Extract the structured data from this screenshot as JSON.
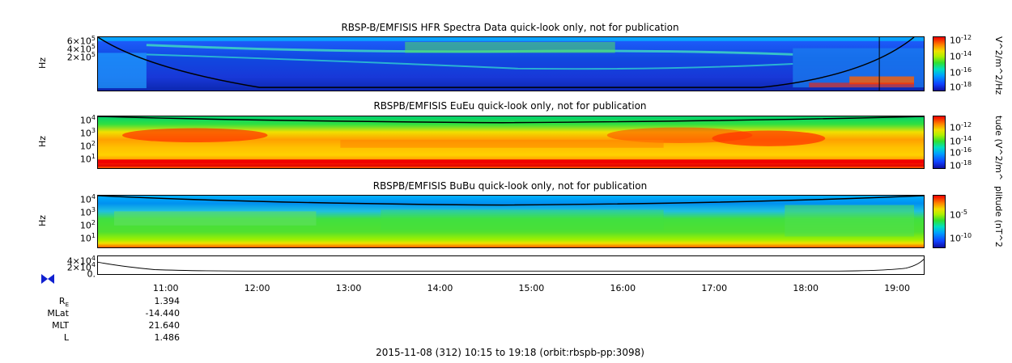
{
  "panels": [
    {
      "title": "RBSP-B/EMFISIS  HFR Spectra Data quick-look only, not for publication",
      "ylabel": "Hz",
      "yticks": [
        {
          "label": "6×10",
          "sup": "5"
        },
        {
          "label": "4×10",
          "sup": "5"
        },
        {
          "label": "2×10",
          "sup": "5"
        }
      ],
      "colorbar_title": "V^2/m^2/Hz",
      "colorbar_ticks": [
        {
          "label": "10",
          "sup": "-12"
        },
        {
          "label": "10",
          "sup": "-14"
        },
        {
          "label": "10",
          "sup": "-16"
        },
        {
          "label": "10",
          "sup": "-18"
        }
      ]
    },
    {
      "title": "RBSPB/EMFISIS  EuEu quick-look only, not for publication",
      "ylabel": "Hz",
      "yticks": [
        {
          "label": "10",
          "sup": "4"
        },
        {
          "label": "10",
          "sup": "3"
        },
        {
          "label": "10",
          "sup": "2"
        },
        {
          "label": "10",
          "sup": "1"
        }
      ],
      "colorbar_title": "tude (V^2/m^",
      "colorbar_ticks": [
        {
          "label": "10",
          "sup": "-12"
        },
        {
          "label": "10",
          "sup": "-14"
        },
        {
          "label": "10",
          "sup": "-16"
        },
        {
          "label": "10",
          "sup": "-18"
        }
      ]
    },
    {
      "title": "RBSPB/EMFISIS  BuBu quick-look only, not for publication",
      "ylabel": "Hz",
      "yticks": [
        {
          "label": "10",
          "sup": "4"
        },
        {
          "label": "10",
          "sup": "3"
        },
        {
          "label": "10",
          "sup": "2"
        },
        {
          "label": "10",
          "sup": "1"
        }
      ],
      "colorbar_title": "plitude (nT^2",
      "colorbar_ticks": [
        {
          "label": "10",
          "sup": "-5"
        },
        {
          "label": "10",
          "sup": "-10"
        }
      ]
    }
  ],
  "line_panel": {
    "yticks": [
      {
        "label": "4×10",
        "sup": "4"
      },
      {
        "label": "2×10",
        "sup": "4"
      },
      {
        "label": "0.",
        "sup": ""
      }
    ]
  },
  "chart_data": {
    "type": "heatmap",
    "x_range": [
      "10:15",
      "19:18"
    ],
    "xticks": [
      "11:00",
      "12:00",
      "13:00",
      "14:00",
      "15:00",
      "16:00",
      "17:00",
      "18:00",
      "19:00"
    ],
    "ephemeris": [
      {
        "label": "R",
        "sub": "E",
        "value": "1.394"
      },
      {
        "label": "MLat",
        "sub": "",
        "value": "-14.440"
      },
      {
        "label": "MLT",
        "sub": "",
        "value": "21.640"
      },
      {
        "label": "L",
        "sub": "",
        "value": "1.486"
      }
    ],
    "footer": "2015-11-08 (312) 10:15 to 19:18 (orbit:rbspb-pp:3098)"
  }
}
